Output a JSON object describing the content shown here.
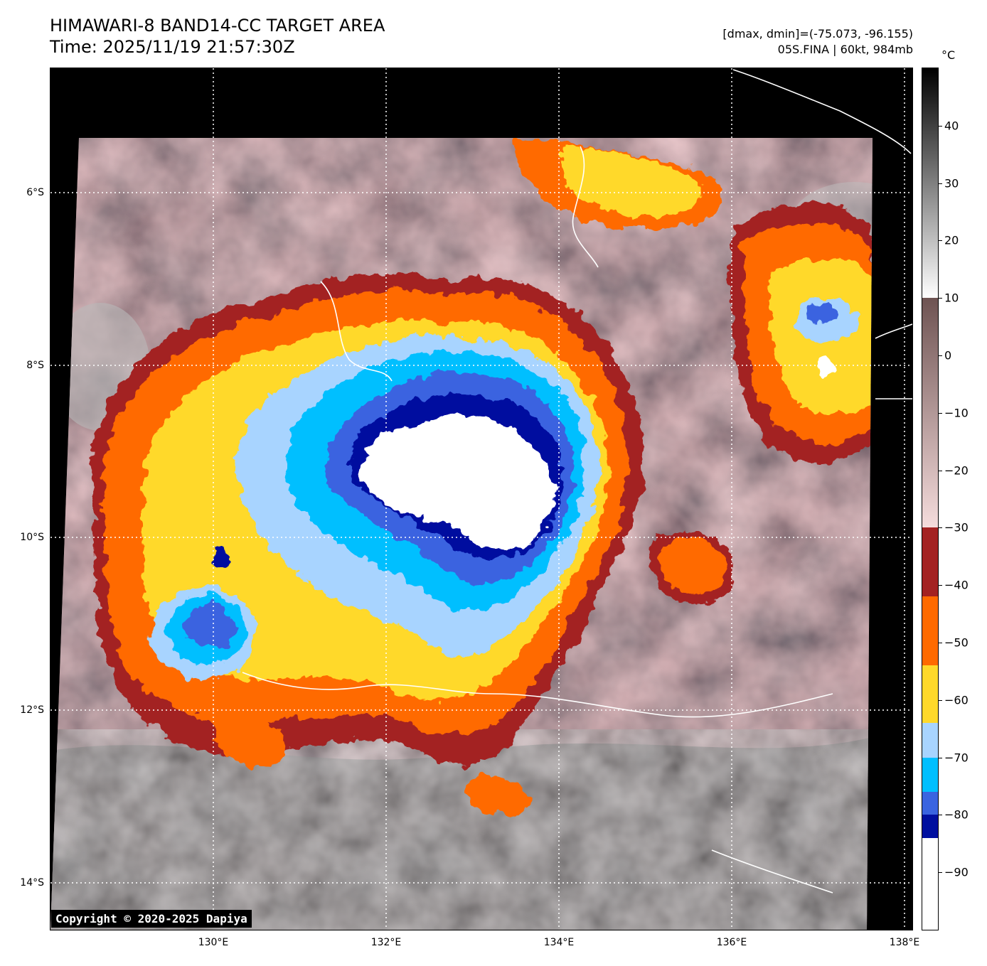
{
  "header": {
    "title": "HIMAWARI-8 BAND14-CC TARGET AREA",
    "time": "Time: 2025/11/19 21:57:30Z",
    "range": "[dmax, dmin]=(-75.073, -96.155)",
    "storm": "05S.FINA | 60kt, 984mb"
  },
  "colorbar": {
    "unit": "°C",
    "min": -100,
    "max": 50,
    "labels": [
      "40",
      "30",
      "20",
      "10",
      "0",
      "−10",
      "−20",
      "−30",
      "−40",
      "−50",
      "−60",
      "−70",
      "−80",
      "−90"
    ],
    "label_values": [
      40,
      30,
      20,
      10,
      0,
      -10,
      -20,
      -30,
      -40,
      -50,
      -60,
      -70,
      -80,
      -90
    ],
    "bands": [
      {
        "from": 10,
        "to": 50,
        "kind": "gray"
      },
      {
        "from": -30,
        "to": 10,
        "kind": "brown"
      },
      {
        "from": -42,
        "to": -30,
        "color": "#a32222"
      },
      {
        "from": -54,
        "to": -42,
        "color": "#ff6a00"
      },
      {
        "from": -64,
        "to": -54,
        "color": "#ffd92a"
      },
      {
        "from": -70,
        "to": -64,
        "color": "#a8d4ff"
      },
      {
        "from": -76,
        "to": -70,
        "color": "#00bfff"
      },
      {
        "from": -80,
        "to": -76,
        "color": "#3a64e0"
      },
      {
        "from": -84,
        "to": -80,
        "color": "#000f9f"
      },
      {
        "from": -100,
        "to": -84,
        "color": "#ffffff"
      }
    ]
  },
  "axes": {
    "lon_labels": [
      "130°E",
      "132°E",
      "134°E",
      "136°E",
      "138°E"
    ],
    "lon_values": [
      130,
      132,
      134,
      136,
      138
    ],
    "lat_labels": [
      "6°S",
      "8°S",
      "10°S",
      "12°S",
      "14°S"
    ],
    "lat_values": [
      -6,
      -8,
      -10,
      -12,
      -14
    ],
    "lon_range": [
      128.2,
      138.2
    ],
    "lat_range": [
      -4.55,
      -14.55
    ]
  },
  "copyright": "Copyright © 2020-2025 Dapiya"
}
